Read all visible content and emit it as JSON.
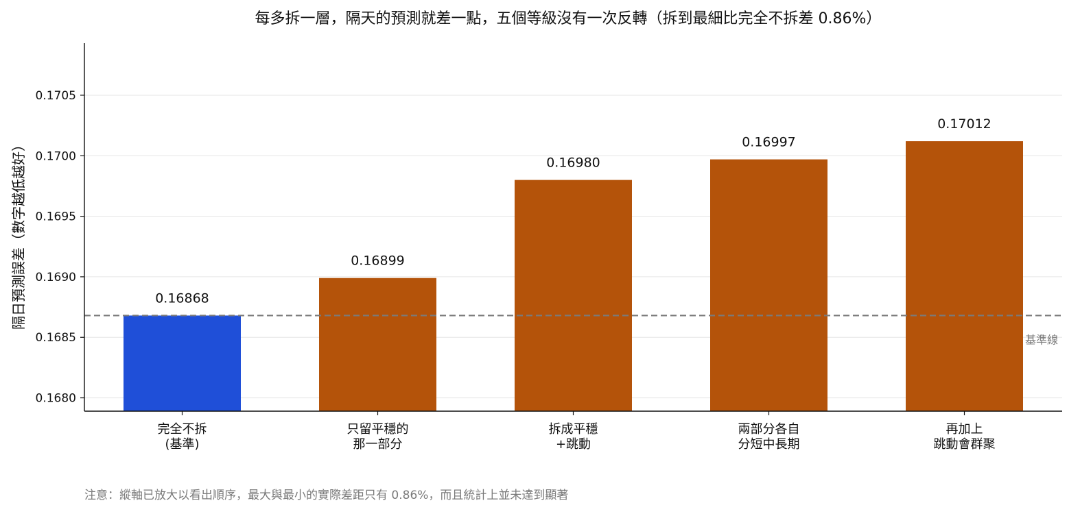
{
  "chart_data": {
    "type": "bar",
    "title": "每多拆一層，隔天的預測就差一點，五個等級沒有一次反轉（拆到最細比完全不拆差 0.86%）",
    "xlabel": "",
    "ylabel": "隔日預測誤差（數字越低越好）",
    "categories": [
      [
        "完全不拆",
        "(基準)"
      ],
      [
        "只留平穩的",
        "那一部分"
      ],
      [
        "拆成平穩",
        "+跳動"
      ],
      [
        "兩部分各自",
        "分短中長期"
      ],
      [
        "再加上",
        "跳動會群聚"
      ]
    ],
    "values": [
      0.16868,
      0.16899,
      0.1698,
      0.16997,
      0.17012
    ],
    "value_labels": [
      "0.16868",
      "0.16899",
      "0.16980",
      "0.16997",
      "0.17012"
    ],
    "bar_colors": [
      "#1f4fd8",
      "#b4530a",
      "#b4530a",
      "#b4530a",
      "#b4530a"
    ],
    "ylim": [
      0.16789,
      0.17093
    ],
    "yticks": [
      0.168,
      0.1685,
      0.169,
      0.1695,
      0.17,
      0.1705
    ],
    "ytick_labels": [
      "0.1680",
      "0.1685",
      "0.1690",
      "0.1695",
      "0.1700",
      "0.1705"
    ],
    "grid": true,
    "grid_color": "#e6e6e6",
    "baseline": {
      "value": 0.16868,
      "label": "基準線",
      "color": "#7a7a7a",
      "style": "dashed"
    },
    "footnote": "注意：縱軸已放大以看出順序，最大與最小的實際差距只有 0.86%，而且統計上並未達到顯著"
  }
}
